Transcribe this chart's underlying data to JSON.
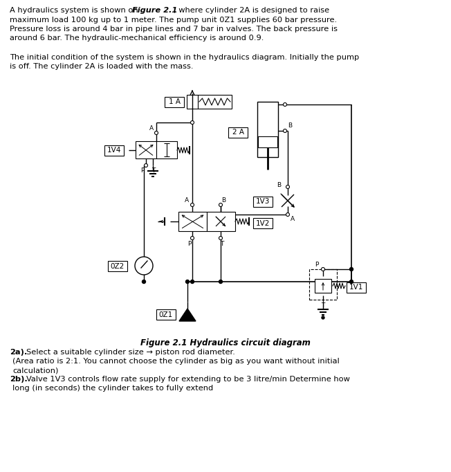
{
  "bg_color": "#ffffff",
  "title_text": "Figure 2.1 Hydraulics circuit diagram",
  "label_1A": "1 A",
  "label_1V4": "1V4",
  "label_2A": "2 A",
  "label_1V3": "1V3",
  "label_1V2": "1V2",
  "label_0Z2": "0Z2",
  "label_0Z1": "0Z1",
  "label_1V1": "1V1"
}
